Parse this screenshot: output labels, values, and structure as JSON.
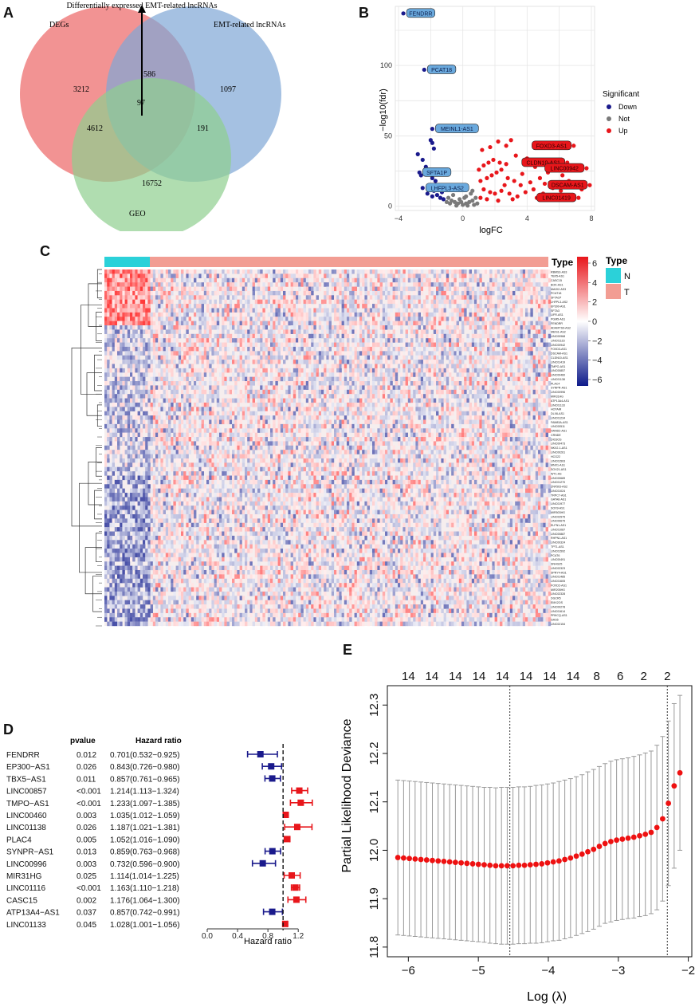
{
  "panel_labels": {
    "a": "A",
    "b": "B",
    "c": "C",
    "d": "D",
    "e": "E"
  },
  "colors": {
    "down": "#1a1a8c",
    "not": "#7a7a7a",
    "up": "#e8161b",
    "venn_a": "#f08080",
    "venn_b": "#7fa7d6",
    "venn_c": "#8fcf8f",
    "heat_high": "#e8161b",
    "heat_low": "#0d1a8a",
    "type_n": "#2bd1d9",
    "type_t": "#f29d93",
    "forest_low": "#1a1a8c",
    "forest_high": "#e8161b",
    "lasso_point": "#ee1111"
  },
  "chart_data": [
    {
      "type": "venn",
      "title": "Differentially expressed EMT-related lncRNAs",
      "sets": [
        "DEGs",
        "EMT-related lncRNAs",
        "GEO"
      ],
      "regions": {
        "degs_only": "3212",
        "emt_only": "1097",
        "geo_only": "16752",
        "degs_emt": "586",
        "degs_geo": "4612",
        "emt_geo": "191",
        "all": "97"
      }
    },
    {
      "type": "scatter",
      "xlabel": "logFC",
      "ylabel": "−log10(fdr)",
      "xlim": [
        -4.2,
        8.2
      ],
      "ylim": [
        -3,
        142
      ],
      "xticks": [
        "−4",
        "0",
        "4",
        "8"
      ],
      "yticks": [
        "0",
        "50",
        "100"
      ],
      "legend_title": "Significant",
      "legend": [
        "Down",
        "Not",
        "Up"
      ],
      "labeled_points": [
        {
          "label": "FENDRR",
          "x": -3.7,
          "y": 137,
          "group": "down"
        },
        {
          "label": "PCAT18",
          "x": -2.4,
          "y": 97,
          "group": "down"
        },
        {
          "label": "MEINL1-AS1",
          "x": -1.9,
          "y": 55,
          "group": "down"
        },
        {
          "label": "SFTA1P",
          "x": -2.7,
          "y": 24,
          "group": "down"
        },
        {
          "label": "LHFPL3-AS2",
          "x": -2.5,
          "y": 13,
          "group": "down"
        },
        {
          "label": "FOXD3-AS1",
          "x": 6.9,
          "y": 43,
          "group": "up"
        },
        {
          "label": "CLDN10-AS1",
          "x": 6.5,
          "y": 31,
          "group": "up"
        },
        {
          "label": "LINC00942",
          "x": 7.7,
          "y": 27,
          "group": "up"
        },
        {
          "label": "DSCAM-AS1",
          "x": 7.9,
          "y": 15,
          "group": "up"
        },
        {
          "label": "LINC01419",
          "x": 7.2,
          "y": 6,
          "group": "up"
        }
      ],
      "down_points": [
        [
          -2.0,
          47
        ],
        [
          -1.9,
          45
        ],
        [
          -1.8,
          41
        ],
        [
          -2.8,
          37
        ],
        [
          -2.5,
          33
        ],
        [
          -2.3,
          28
        ],
        [
          -2.0,
          26
        ],
        [
          -2.6,
          22
        ],
        [
          -1.9,
          20
        ],
        [
          -1.7,
          18
        ],
        [
          -2.1,
          15
        ],
        [
          -1.5,
          13
        ],
        [
          -1.8,
          11
        ],
        [
          -1.3,
          10
        ],
        [
          -2.2,
          9
        ],
        [
          -1.6,
          8
        ],
        [
          -1.4,
          6
        ],
        [
          -1.2,
          5
        ],
        [
          -1.9,
          7
        ],
        [
          -1.1,
          12
        ]
      ],
      "not_points": [
        [
          -0.9,
          6
        ],
        [
          -0.7,
          4
        ],
        [
          -0.5,
          3
        ],
        [
          -0.3,
          2
        ],
        [
          0.0,
          1
        ],
        [
          0.2,
          2
        ],
        [
          0.4,
          3
        ],
        [
          0.6,
          4
        ],
        [
          0.8,
          6
        ],
        [
          -0.6,
          8
        ],
        [
          0.5,
          9
        ],
        [
          -0.2,
          5
        ],
        [
          0.1,
          6
        ],
        [
          -0.8,
          2
        ],
        [
          0.7,
          1
        ],
        [
          -0.4,
          0.5
        ],
        [
          0.3,
          0.5
        ],
        [
          0.9,
          2
        ],
        [
          -1.0,
          3
        ],
        [
          0.2,
          7
        ],
        [
          -0.1,
          3
        ],
        [
          0.6,
          11
        ],
        [
          -0.5,
          12
        ]
      ],
      "up_points": [
        [
          1.2,
          40
        ],
        [
          1.7,
          42
        ],
        [
          2.2,
          46
        ],
        [
          2.7,
          43
        ],
        [
          3.0,
          47
        ],
        [
          1.0,
          26
        ],
        [
          1.3,
          29
        ],
        [
          1.6,
          31
        ],
        [
          1.9,
          33
        ],
        [
          2.3,
          31
        ],
        [
          2.7,
          30
        ],
        [
          3.3,
          36
        ],
        [
          4.0,
          34
        ],
        [
          1.1,
          18
        ],
        [
          1.5,
          20
        ],
        [
          1.8,
          22
        ],
        [
          2.1,
          24
        ],
        [
          2.4,
          26
        ],
        [
          2.8,
          20
        ],
        [
          3.2,
          18
        ],
        [
          3.6,
          15
        ],
        [
          4.2,
          17
        ],
        [
          4.8,
          20
        ],
        [
          5.3,
          24
        ],
        [
          5.9,
          26
        ],
        [
          6.2,
          22
        ],
        [
          6.6,
          18
        ],
        [
          7.0,
          14
        ],
        [
          7.4,
          12
        ],
        [
          1.3,
          12
        ],
        [
          1.7,
          10
        ],
        [
          2.0,
          9
        ],
        [
          2.4,
          11
        ],
        [
          2.9,
          9
        ],
        [
          3.4,
          7
        ],
        [
          3.9,
          10
        ],
        [
          4.4,
          12
        ],
        [
          5.0,
          9
        ],
        [
          5.6,
          13
        ],
        [
          6.1,
          11
        ],
        [
          1.1,
          6
        ],
        [
          1.5,
          5
        ],
        [
          2.2,
          4
        ],
        [
          3.1,
          5
        ],
        [
          4.6,
          6
        ],
        [
          2.6,
          15
        ],
        [
          3.7,
          23
        ],
        [
          4.5,
          28
        ],
        [
          5.1,
          16
        ],
        [
          6.3,
          8
        ]
      ]
    },
    {
      "type": "heatmap",
      "legend_title": "Type",
      "legend": [
        "N",
        "T"
      ],
      "annotation_label": "Type",
      "scale_ticks": [
        "6",
        "4",
        "2",
        "0",
        "−2",
        "−4",
        "−6"
      ],
      "genes": [
        "RBMS3-AS3",
        "TBX5-AS1",
        "CASC15",
        "BOK-AS1",
        "MAGI2-AS3",
        "PCAT18",
        "SFTA1P",
        "LHFPL3-AS2",
        "EP300-AS1",
        "SFTA3",
        "LIFR-AS1",
        "PGM5-AS1",
        "FENDRR",
        "ADAMTS9-AS2",
        "MEIS1-AS2",
        "LINC00968",
        "LINC01116",
        "LINC00942",
        "FOXD3-AS1",
        "DSCAM-AS1",
        "CLDN10-AS1",
        "LINC01419",
        "TMPO-AS1",
        "LINC00857",
        "LINC00460",
        "LINC01138",
        "PLAC4",
        "SYNPR-AS1",
        "LINC00996",
        "MIR31HG",
        "ATP13A4-AS1",
        "LINC01133",
        "HOTAIR",
        "DLX6-AS1",
        "LINC01234",
        "FAM83A-AS1",
        "LINC00511",
        "HAND2-AS1",
        "CRNDE",
        "DIO3OS",
        "LINC00473",
        "NKX2-1-AS1",
        "LINC00261",
        "HCG22",
        "LINC01503",
        "MNX1-AS1",
        "SOX21-AS1",
        "WT1-AS",
        "LINC00689",
        "LINC01270",
        "ZNF503-AS2",
        "LINC01024",
        "TRPC7-AS1",
        "GATA6-AS1",
        "LINC01977",
        "SOX9-AS1",
        "MIR503HG",
        "LINC02575",
        "LINC00675",
        "ELFN1-AS1",
        "LINC01087",
        "LINC00887",
        "RHPN1-AS1",
        "LINC00324",
        "TPT1-AS1",
        "LINC01592",
        "PCAT6",
        "LINC00491",
        "SNHG25",
        "LINC02323",
        "SPRY4-AS1",
        "LINC01485",
        "LINC01605",
        "FOXD2-AS1",
        "MIR205HG",
        "LINC02328",
        "DGCR5",
        "EMX2OS",
        "LINC00278",
        "LINC01614",
        "PRKCQ-AS1",
        "GAS5",
        "LINC02154"
      ],
      "dendrogram": [
        {
          "y1": 0.0,
          "y2": 0.08,
          "depth": 0.15
        },
        {
          "y1": 0.12,
          "y2": 0.2,
          "depth": 0.2
        },
        {
          "y1": 0.04,
          "y2": 0.16,
          "depth": 0.45
        },
        {
          "y1": 0.24,
          "y2": 0.34,
          "depth": 0.25
        },
        {
          "y1": 0.38,
          "y2": 0.44,
          "depth": 0.15
        },
        {
          "y1": 0.29,
          "y2": 0.41,
          "depth": 0.5
        },
        {
          "y1": 0.1,
          "y2": 0.35,
          "depth": 0.7
        },
        {
          "y1": 0.5,
          "y2": 0.58,
          "depth": 0.2
        },
        {
          "y1": 0.62,
          "y2": 0.7,
          "depth": 0.25
        },
        {
          "y1": 0.54,
          "y2": 0.66,
          "depth": 0.45
        },
        {
          "y1": 0.74,
          "y2": 0.82,
          "depth": 0.2
        },
        {
          "y1": 0.86,
          "y2": 0.96,
          "depth": 0.3
        },
        {
          "y1": 0.78,
          "y2": 0.91,
          "depth": 0.55
        },
        {
          "y1": 0.6,
          "y2": 0.85,
          "depth": 0.75
        },
        {
          "y1": 0.22,
          "y2": 0.72,
          "depth": 1.0
        }
      ]
    },
    {
      "type": "forest",
      "col_pvalue": "pvalue",
      "col_hr": "Hazard ratio",
      "xlabel": "Hazard ratio",
      "xticks": [
        "0.0",
        "0.4",
        "0.8",
        "1.2"
      ],
      "xlim": [
        0,
        1.45
      ],
      "ref_line": 1,
      "rows": [
        {
          "gene": "FENDRR",
          "p": "0.012",
          "hr_text": "0.701(0.532−0.925)",
          "hr": 0.701,
          "lo": 0.532,
          "hi": 0.925
        },
        {
          "gene": "EP300−AS1",
          "p": "0.026",
          "hr_text": "0.843(0.726−0.980)",
          "hr": 0.843,
          "lo": 0.726,
          "hi": 0.98
        },
        {
          "gene": "TBX5−AS1",
          "p": "0.011",
          "hr_text": "0.857(0.761−0.965)",
          "hr": 0.857,
          "lo": 0.761,
          "hi": 0.965
        },
        {
          "gene": "LINC00857",
          "p": "<0.001",
          "hr_text": "1.214(1.113−1.324)",
          "hr": 1.214,
          "lo": 1.113,
          "hi": 1.324
        },
        {
          "gene": "TMPO−AS1",
          "p": "<0.001",
          "hr_text": "1.233(1.097−1.385)",
          "hr": 1.233,
          "lo": 1.097,
          "hi": 1.385
        },
        {
          "gene": "LINC00460",
          "p": "0.003",
          "hr_text": "1.035(1.012−1.059)",
          "hr": 1.035,
          "lo": 1.012,
          "hi": 1.059
        },
        {
          "gene": "LINC01138",
          "p": "0.026",
          "hr_text": "1.187(1.021−1.381)",
          "hr": 1.187,
          "lo": 1.021,
          "hi": 1.381
        },
        {
          "gene": "PLAC4",
          "p": "0.005",
          "hr_text": "1.052(1.016−1.090)",
          "hr": 1.052,
          "lo": 1.016,
          "hi": 1.09
        },
        {
          "gene": "SYNPR−AS1",
          "p": "0.013",
          "hr_text": "0.859(0.763−0.968)",
          "hr": 0.859,
          "lo": 0.763,
          "hi": 0.968
        },
        {
          "gene": "LINC00996",
          "p": "0.003",
          "hr_text": "0.732(0.596−0.900)",
          "hr": 0.732,
          "lo": 0.596,
          "hi": 0.9
        },
        {
          "gene": "MIR31HG",
          "p": "0.025",
          "hr_text": "1.114(1.014−1.225)",
          "hr": 1.114,
          "lo": 1.014,
          "hi": 1.225
        },
        {
          "gene": "LINC01116",
          "p": "<0.001",
          "hr_text": "1.163(1.110−1.218)",
          "hr": 1.163,
          "lo": 1.11,
          "hi": 1.218
        },
        {
          "gene": "CASC15",
          "p": "0.002",
          "hr_text": "1.176(1.064−1.300)",
          "hr": 1.176,
          "lo": 1.064,
          "hi": 1.3
        },
        {
          "gene": "ATP13A4−AS1",
          "p": "0.037",
          "hr_text": "0.857(0.742−0.991)",
          "hr": 0.857,
          "lo": 0.742,
          "hi": 0.991
        },
        {
          "gene": "LINC01133",
          "p": "0.045",
          "hr_text": "1.028(1.001−1.056)",
          "hr": 1.028,
          "lo": 1.001,
          "hi": 1.056
        }
      ]
    },
    {
      "type": "line",
      "xlabel": "Log (λ)",
      "ylabel": "Partial Likelihood Deviance",
      "xlim": [
        -6.3,
        -1.95
      ],
      "ylim": [
        11.78,
        12.34
      ],
      "xticks": [
        "−6",
        "−5",
        "−4",
        "−3",
        "−2"
      ],
      "yticks": [
        "11.8",
        "11.9",
        "12.0",
        "12.1",
        "12.2",
        "12.3"
      ],
      "top_counts": [
        "14",
        "14",
        "14",
        "14",
        "14",
        "14",
        "14",
        "14",
        "8",
        "6",
        "2",
        "2"
      ],
      "vlines": [
        -4.55,
        -2.3
      ],
      "mean": [
        11.985,
        11.984,
        11.983,
        11.982,
        11.981,
        11.98,
        11.979,
        11.978,
        11.977,
        11.976,
        11.975,
        11.974,
        11.973,
        11.972,
        11.971,
        11.97,
        11.969,
        11.968,
        11.968,
        11.968,
        11.968,
        11.969,
        11.969,
        11.97,
        11.971,
        11.972,
        11.974,
        11.976,
        11.978,
        11.981,
        11.984,
        11.988,
        11.992,
        11.997,
        12.002,
        12.008,
        12.014,
        12.018,
        12.021,
        12.023,
        12.025,
        12.027,
        12.03,
        12.033,
        12.037,
        12.047,
        12.065,
        12.097,
        12.133,
        12.16
      ],
      "half_ci": [
        0.16,
        0.16,
        0.16,
        0.16,
        0.16,
        0.16,
        0.16,
        0.16,
        0.16,
        0.16,
        0.16,
        0.16,
        0.16,
        0.16,
        0.16,
        0.16,
        0.161,
        0.161,
        0.162,
        0.162,
        0.162,
        0.162,
        0.162,
        0.162,
        0.163,
        0.163,
        0.163,
        0.163,
        0.164,
        0.164,
        0.164,
        0.164,
        0.164,
        0.165,
        0.165,
        0.165,
        0.165,
        0.166,
        0.166,
        0.166,
        0.166,
        0.167,
        0.167,
        0.168,
        0.168,
        0.17,
        0.17,
        0.17,
        0.17,
        0.16
      ]
    }
  ]
}
